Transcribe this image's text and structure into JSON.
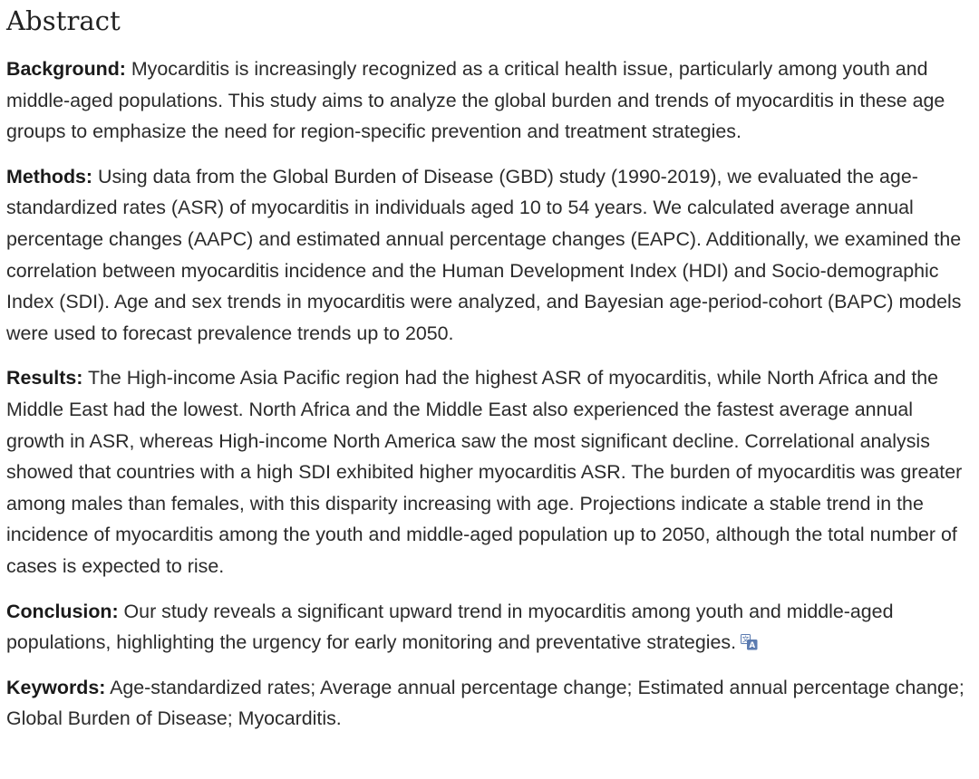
{
  "abstract": {
    "title": "Abstract",
    "background": {
      "label": "Background:",
      "text": " Myocarditis is increasingly recognized as a critical health issue, particularly among youth and middle-aged populations. This study aims to analyze the global burden and trends of myocarditis in these age groups to emphasize the need for region-specific prevention and treatment strategies."
    },
    "methods": {
      "label": "Methods:",
      "text": " Using data from the Global Burden of Disease (GBD) study (1990-2019), we evaluated the age-standardized rates (ASR) of myocarditis in individuals aged 10 to 54 years. We calculated average annual percentage changes (AAPC) and estimated annual percentage changes (EAPC). Additionally, we examined the correlation between myocarditis incidence and the Human Development Index (HDI) and Socio-demographic Index (SDI). Age and sex trends in myocarditis were analyzed, and Bayesian age-period-cohort (BAPC) models were used to forecast prevalence trends up to 2050."
    },
    "results": {
      "label": "Results:",
      "text": " The High-income Asia Pacific region had the highest ASR of myocarditis, while North Africa and the Middle East had the lowest. North Africa and the Middle East also experienced the fastest average annual growth in ASR, whereas High-income North America saw the most significant decline. Correlational analysis showed that countries with a high SDI exhibited higher myocarditis ASR. The burden of myocarditis was greater among males than females, with this disparity increasing with age. Projections indicate a stable trend in the incidence of myocarditis among the youth and middle-aged population up to 2050, although the total number of cases is expected to rise."
    },
    "conclusion": {
      "label": "Conclusion:",
      "text": " Our study reveals a significant upward trend in myocarditis among youth and middle-aged populations, highlighting the urgency for early monitoring and preventative strategies."
    },
    "keywords": {
      "label": "Keywords:",
      "text": " Age-standardized rates; Average annual percentage change; Estimated annual percentage change; Global Burden of Disease; Myocarditis."
    },
    "translate_icon": "translate-icon",
    "colors": {
      "text": "#2b2b2b",
      "heading": "#212121",
      "icon": "#5b7bb0"
    }
  }
}
